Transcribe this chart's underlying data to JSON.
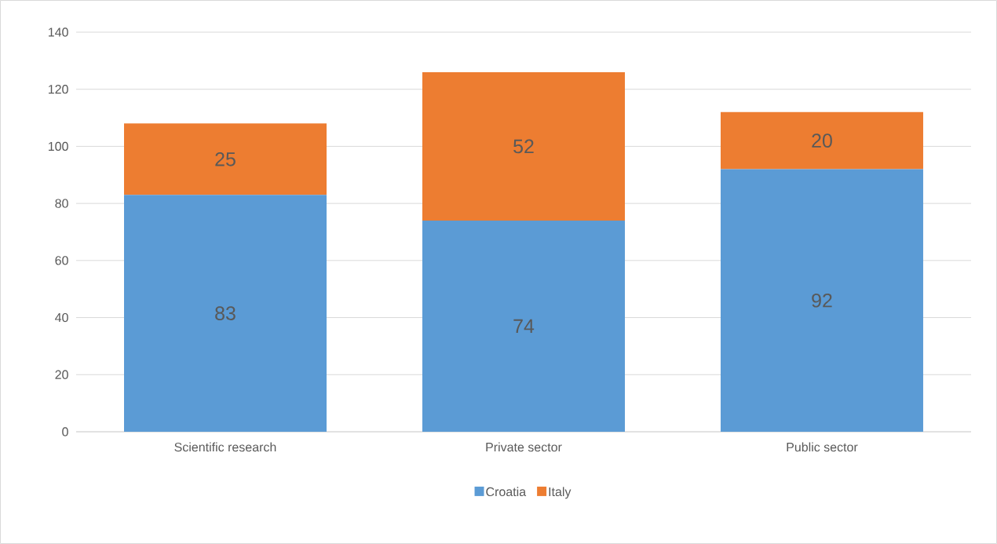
{
  "chart_data": {
    "type": "bar",
    "stacked": true,
    "categories": [
      "Scientific research",
      "Private sector",
      "Public sector"
    ],
    "series": [
      {
        "name": "Croatia",
        "color": "#5b9bd5",
        "values": [
          83,
          74,
          92
        ]
      },
      {
        "name": "Italy",
        "color": "#ed7d31",
        "values": [
          25,
          52,
          20
        ]
      }
    ],
    "ylim": [
      0,
      140
    ],
    "yticks": [
      0,
      20,
      40,
      60,
      80,
      100,
      120,
      140
    ],
    "grid": "y",
    "legend": "bottom",
    "data_labels": true
  }
}
